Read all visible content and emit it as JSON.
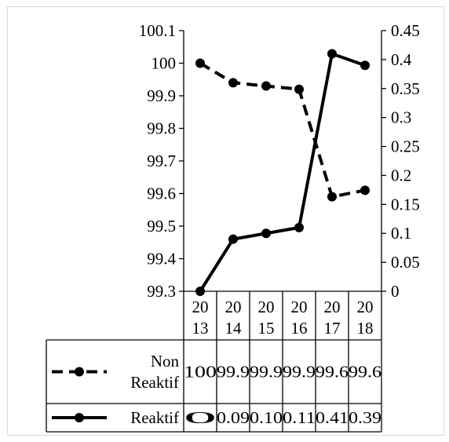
{
  "chart_data": {
    "type": "line",
    "title": "",
    "xlabel": "",
    "ylabel": "",
    "categories": [
      "2013",
      "2014",
      "2015",
      "2016",
      "2017",
      "2018"
    ],
    "category_lines": [
      [
        "20",
        "13"
      ],
      [
        "20",
        "14"
      ],
      [
        "20",
        "15"
      ],
      [
        "20",
        "16"
      ],
      [
        "20",
        "17"
      ],
      [
        "20",
        "18"
      ]
    ],
    "y_left": {
      "min": 99.3,
      "max": 100.1,
      "ticks": [
        "99.3",
        "99.4",
        "99.5",
        "99.6",
        "99.7",
        "99.8",
        "99.9",
        "100",
        "100.1"
      ]
    },
    "y_right": {
      "min": 0,
      "max": 0.45,
      "ticks": [
        "0",
        "0.05",
        "0.1",
        "0.15",
        "0.2",
        "0.25",
        "0.3",
        "0.35",
        "0.4",
        "0.45"
      ]
    },
    "series": [
      {
        "name": "Non Reaktif",
        "name_lines": [
          "Non",
          "Reaktif"
        ],
        "axis": "left",
        "style": "dashed",
        "color": "#000000",
        "values": [
          100.0,
          99.94,
          99.93,
          99.92,
          99.59,
          99.61
        ],
        "table_values": [
          "100",
          "99.9",
          "99.9",
          "99.9",
          "99.6",
          "99.6"
        ]
      },
      {
        "name": "Reaktif",
        "name_lines": [
          "Reaktif"
        ],
        "axis": "right",
        "style": "solid",
        "color": "#000000",
        "values": [
          0,
          0.09,
          0.1,
          0.11,
          0.41,
          0.39
        ],
        "table_values": [
          "0",
          "0.09",
          "0.10",
          "0.11",
          "0.41",
          "0.39"
        ]
      }
    ],
    "grid": false,
    "legend": "data-table-below"
  }
}
